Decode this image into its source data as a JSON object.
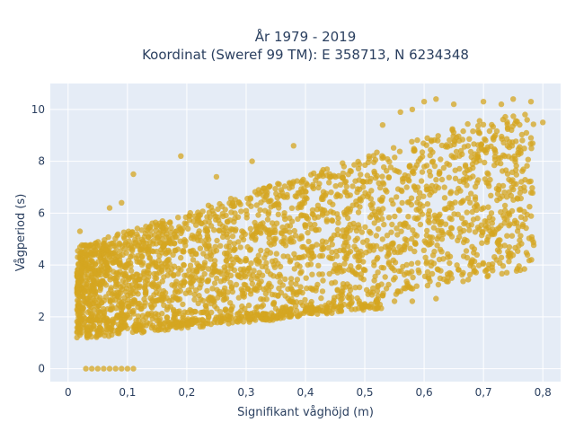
{
  "chart_data": {
    "type": "scatter",
    "title_line1": "År 1979 - 2019",
    "title_line2": "Koordinat (Sweref 99 TM): E 358713, N 6234348",
    "xlabel": "Signifikant våghöjd (m)",
    "ylabel": "Vågperiod (s)",
    "xlim": [
      -0.03,
      0.83
    ],
    "ylim": [
      -0.5,
      11
    ],
    "x_ticks": [
      0,
      0.1,
      0.2,
      0.3,
      0.4,
      0.5,
      0.6,
      0.7,
      0.8
    ],
    "x_tick_labels": [
      "0",
      "0,1",
      "0,2",
      "0,3",
      "0,4",
      "0,5",
      "0,6",
      "0,7",
      "0,8"
    ],
    "y_ticks": [
      0,
      2,
      4,
      6,
      8,
      10
    ],
    "y_tick_labels": [
      "0",
      "2",
      "4",
      "6",
      "8",
      "10"
    ],
    "grid": true,
    "colors": {
      "plot_bg": "#e5ecf6",
      "grid": "#ffffff",
      "marker": "#d4a520",
      "text": "#2a3f5f"
    },
    "series": [
      {
        "points": [
          [
            0.03,
            0
          ],
          [
            0.04,
            0
          ],
          [
            0.05,
            0
          ],
          [
            0.06,
            0
          ],
          [
            0.07,
            0
          ],
          [
            0.08,
            0
          ],
          [
            0.09,
            0
          ],
          [
            0.1,
            0
          ],
          [
            0.11,
            0
          ],
          [
            0.015,
            3.7
          ],
          [
            0.015,
            1.4
          ],
          [
            0.015,
            1.2
          ],
          [
            0.02,
            5.3
          ],
          [
            0.02,
            1.3
          ],
          [
            0.015,
            3.1
          ],
          [
            0.07,
            6.2
          ],
          [
            0.09,
            6.4
          ],
          [
            0.11,
            7.5
          ],
          [
            0.19,
            8.2
          ],
          [
            0.25,
            7.4
          ],
          [
            0.31,
            8
          ],
          [
            0.38,
            8.6
          ],
          [
            0.42,
            7.4
          ],
          [
            0.53,
            9.4
          ],
          [
            0.56,
            9.9
          ],
          [
            0.58,
            10
          ],
          [
            0.6,
            10.3
          ],
          [
            0.62,
            10.4
          ],
          [
            0.65,
            10.2
          ],
          [
            0.7,
            10.3
          ],
          [
            0.73,
            10.2
          ],
          [
            0.75,
            10.4
          ],
          [
            0.78,
            10.3
          ],
          [
            0.8,
            9.5
          ],
          [
            0.78,
            8.9
          ],
          [
            0.77,
            9.8
          ],
          [
            0.72,
            9
          ],
          [
            0.5,
            2.5
          ],
          [
            0.52,
            2.6
          ],
          [
            0.55,
            2.6
          ],
          [
            0.58,
            2.6
          ],
          [
            0.62,
            2.7
          ],
          [
            0.44,
            2.3
          ],
          [
            0.4,
            2.3
          ],
          [
            0.69,
            5.8
          ],
          [
            0.7,
            6.2
          ],
          [
            0.61,
            4.8
          ],
          [
            0.63,
            5
          ],
          [
            0.66,
            5.4
          ],
          [
            0.57,
            4.8
          ],
          [
            0.56,
            4.5
          ]
        ]
      }
    ]
  }
}
